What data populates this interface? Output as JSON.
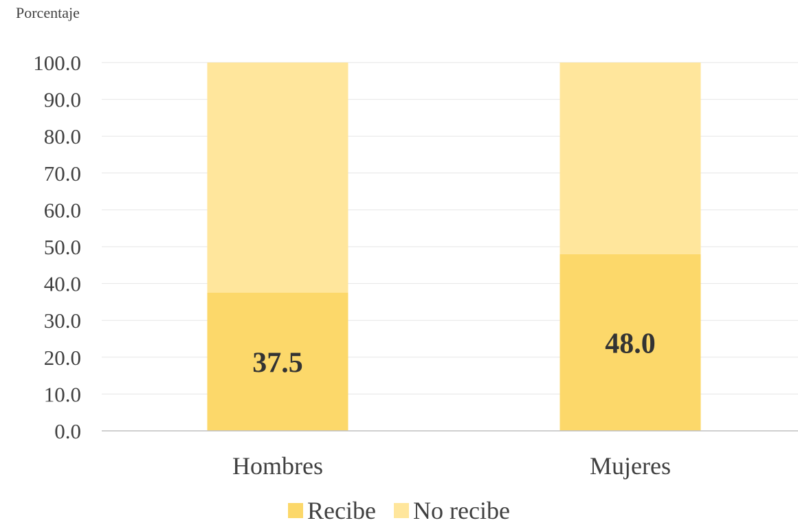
{
  "chart_data": {
    "type": "bar",
    "stacked": true,
    "ylabel": "Porcentaje",
    "categories": [
      "Hombres",
      "Mujeres"
    ],
    "series": [
      {
        "name": "Recibe",
        "values": [
          37.5,
          48.0
        ],
        "color": "#FCD86A"
      },
      {
        "name": "No recibe",
        "values": [
          62.5,
          52.0
        ],
        "color": "#FFE69C"
      }
    ],
    "data_labels": [
      "37.5",
      "48.0"
    ],
    "ylim": [
      0,
      100
    ],
    "yticks": [
      "0.0",
      "10.0",
      "20.0",
      "30.0",
      "40.0",
      "50.0",
      "60.0",
      "70.0",
      "80.0",
      "90.0",
      "100.0"
    ],
    "grid": true,
    "legend": "bottom"
  }
}
